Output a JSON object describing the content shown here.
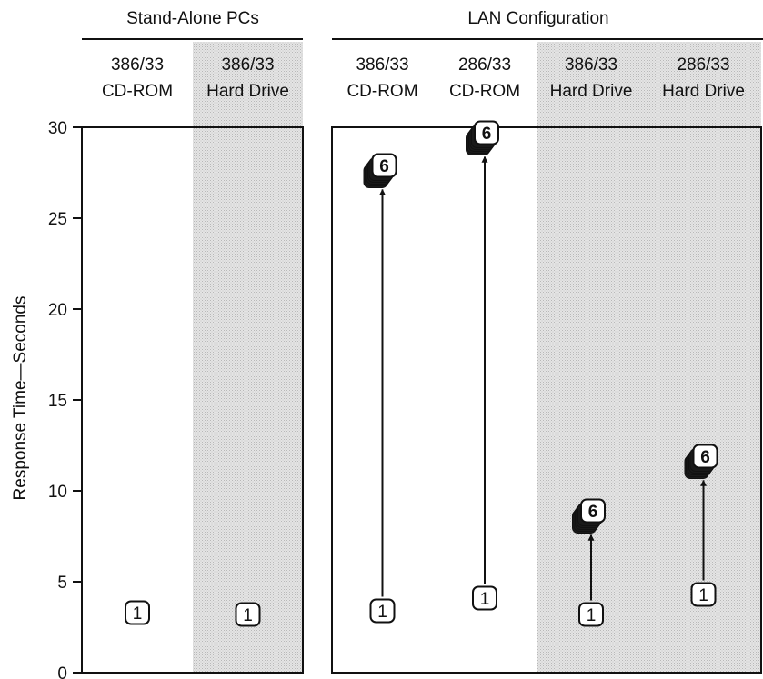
{
  "chart_data": {
    "type": "scatter",
    "group_headers": [
      "Stand-Alone PCs",
      "LAN Configuration"
    ],
    "groups": [
      {
        "name": "Stand-Alone PCs",
        "columns": [
          {
            "line1": "386/33",
            "line2": "CD-ROM",
            "shaded": false
          },
          {
            "line1": "386/33",
            "line2": "Hard Drive",
            "shaded": true
          }
        ]
      },
      {
        "name": "LAN Configuration",
        "columns": [
          {
            "line1": "386/33",
            "line2": "CD-ROM",
            "shaded": false
          },
          {
            "line1": "286/33",
            "line2": "CD-ROM",
            "shaded": false
          },
          {
            "line1": "386/33",
            "line2": "Hard Drive",
            "shaded": true
          },
          {
            "line1": "286/33",
            "line2": "Hard Drive",
            "shaded": true
          }
        ]
      }
    ],
    "ylabel": "Response Time—Seconds",
    "ylim": [
      0,
      30
    ],
    "yticks": [
      0,
      5,
      10,
      15,
      20,
      25,
      30
    ],
    "series": [
      {
        "name": "1",
        "values": [
          3.3,
          3.2,
          3.4,
          4.1,
          3.2,
          4.3
        ]
      },
      {
        "name": "6",
        "values": [
          null,
          null,
          27.8,
          29.6,
          8.8,
          11.8
        ]
      }
    ],
    "colors": {
      "shade": "#d9d9d9",
      "ink": "#111111",
      "stack": "#1a1a1a"
    }
  }
}
